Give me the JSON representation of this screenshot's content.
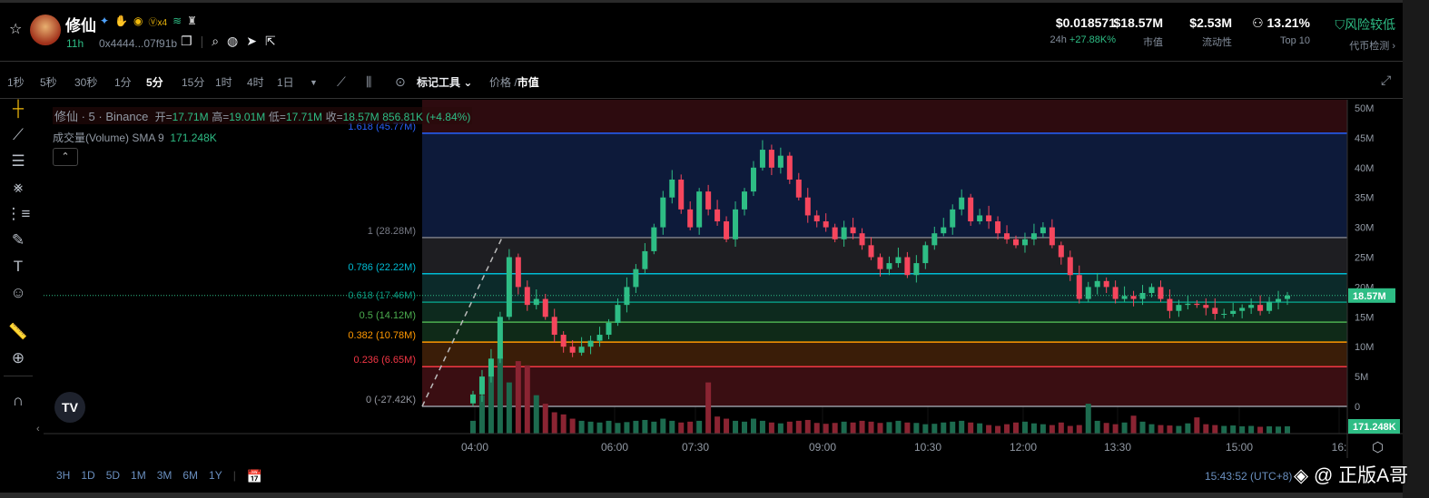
{
  "header": {
    "token_name": "修仙",
    "badges": [
      "✦",
      "✋",
      "◉",
      "Ⓥx4",
      "≋",
      "♜"
    ],
    "age": "11h",
    "address": "0x4444...07f91b",
    "icons": [
      "copy-icon",
      "search-icon",
      "globe-icon",
      "telegram-icon",
      "share-icon"
    ],
    "stats": [
      {
        "value": "$0.018571",
        "label_prefix": "24h",
        "label": "+27.88K%"
      },
      {
        "value": "$18.57M",
        "label": "市值"
      },
      {
        "value": "$2.53M",
        "label": "流动性"
      },
      {
        "value": "13.21%",
        "label": "Top 10"
      },
      {
        "value": "风险较低",
        "label": "代币检测 ›"
      }
    ]
  },
  "toolbar": {
    "timeframes": [
      "1秒",
      "5秒",
      "30秒",
      "1分",
      "5分",
      "15分",
      "1时",
      "4时",
      "1日"
    ],
    "active_timeframe": "5分",
    "drawing_tools": "标记工具",
    "price_label": "价格",
    "mcap_label": "市值"
  },
  "legend": {
    "symbol": "修仙 · 5 · Binance",
    "open_label": "开=",
    "open": "17.71M",
    "high_label": "高=",
    "high": "19.01M",
    "low_label": "低=",
    "low": "17.71M",
    "close_label": "收=",
    "close": "18.57M",
    "change": "856.81K (+4.84%)",
    "volume_label": "成交量(Volume) SMA 9",
    "volume_value": "171.248K"
  },
  "colors": {
    "up": "#2ebd85",
    "down": "#f6465d",
    "accent": "#2ebd85"
  },
  "chart_data": {
    "type": "candlestick",
    "unit": "market cap (M)",
    "x_ticks": [
      "04:00",
      "06:00",
      "07:30",
      "09:00",
      "10:30",
      "12:00",
      "13:30",
      "15:00",
      "16:"
    ],
    "y_ticks": [
      "0",
      "5M",
      "10M",
      "15M",
      "20M",
      "25M",
      "30M",
      "35M",
      "40M",
      "45M",
      "50M"
    ],
    "ylim": [
      0,
      50
    ],
    "closes": [
      2,
      5,
      8,
      15,
      25,
      20,
      17,
      18,
      15,
      12,
      10,
      9,
      10,
      11,
      12,
      14,
      17,
      20,
      23,
      26,
      30,
      35,
      38,
      33,
      30,
      36,
      33,
      31,
      28,
      33,
      36,
      40,
      43,
      40,
      42,
      38,
      35,
      32,
      31,
      30,
      28,
      30,
      29,
      27,
      25,
      23,
      24,
      25,
      22,
      24,
      27,
      29,
      30,
      33,
      35,
      31,
      32,
      31,
      29,
      28,
      27,
      28,
      29,
      30,
      27,
      25,
      22,
      18,
      20,
      21,
      20,
      18,
      18.5,
      18,
      19,
      20,
      18,
      16,
      17,
      17.2,
      17,
      16.5,
      15.5,
      15.5,
      16,
      16.5,
      17,
      16,
      17.5,
      18,
      18.57
    ],
    "volumes_k": [
      300,
      900,
      1500,
      1800,
      1200,
      1700,
      1600,
      900,
      700,
      500,
      450,
      350,
      300,
      280,
      260,
      300,
      250,
      270,
      300,
      320,
      280,
      350,
      300,
      260,
      280,
      300,
      1200,
      400,
      350,
      300,
      280,
      350,
      300,
      260,
      240,
      280,
      300,
      320,
      250,
      230,
      250,
      280,
      260,
      300,
      280,
      250,
      270,
      300,
      260,
      250,
      220,
      230,
      260,
      280,
      300,
      260,
      240,
      200,
      180,
      220,
      260,
      280,
      240,
      220,
      200,
      260,
      180,
      200,
      700,
      300,
      250,
      220,
      260,
      420,
      280,
      220,
      200,
      190,
      180,
      240,
      380,
      220,
      200,
      180,
      190,
      170,
      180,
      160,
      170,
      165,
      171.248
    ],
    "current_price": "18.57M",
    "current_volume": "171.248K",
    "fib_levels": [
      {
        "label": "0 (-27.42K)",
        "value": 0,
        "color": "#9598a1"
      },
      {
        "label": "0.236 (6.65M)",
        "value": 6.65,
        "color": "#f23645"
      },
      {
        "label": "0.382 (10.78M)",
        "value": 10.78,
        "color": "#ff9800"
      },
      {
        "label": "0.5 (14.12M)",
        "value": 14.12,
        "color": "#4caf50"
      },
      {
        "label": "0.618 (17.46M)",
        "value": 17.46,
        "color": "#089981"
      },
      {
        "label": "0.786 (22.22M)",
        "value": 22.22,
        "color": "#00bcd4"
      },
      {
        "label": "1 (28.28M)",
        "value": 28.28,
        "color": "#787b86"
      },
      {
        "label": "1.618 (45.77M)",
        "value": 45.77,
        "color": "#2962ff"
      }
    ]
  },
  "range_buttons": [
    "3H",
    "1D",
    "5D",
    "1M",
    "3M",
    "6M",
    "1Y"
  ],
  "clock": "15:43:52 (UTC+8)",
  "watermark": "@ 正版A哥"
}
